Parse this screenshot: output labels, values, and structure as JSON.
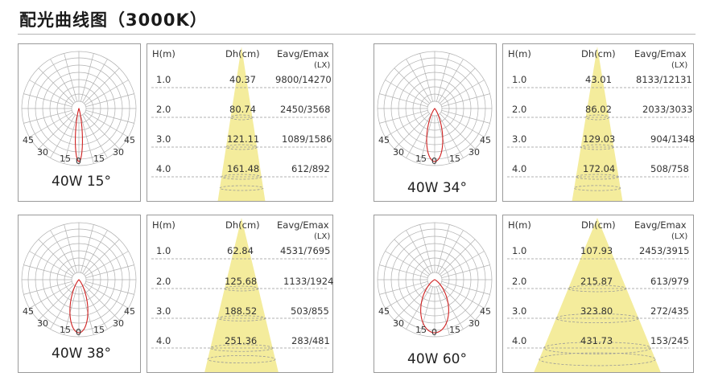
{
  "page": {
    "title": "配光曲线图（3000K）"
  },
  "colors": {
    "cone_fill": "#f4ec9c",
    "curve_stroke": "#d02020",
    "grid_stroke": "#b0b0b0",
    "panel_border": "#9a9a9a",
    "dash_stroke": "#999999"
  },
  "panels": [
    {
      "name": "40w-15",
      "label": "40W 15°",
      "beam_angle_deg": 15,
      "angle_labels": [
        "45",
        "30",
        "15",
        "0",
        "15",
        "30",
        "45"
      ],
      "table": {
        "col_h": "H(m)",
        "col_dh": "Dh(cm)",
        "col_eavg": "Eavg/Emax",
        "col_unit": "(LX)",
        "rows": [
          {
            "h": "1.0",
            "dh": "40.37",
            "e": "9800/14270"
          },
          {
            "h": "2.0",
            "dh": "80.74",
            "e": "2450/3568"
          },
          {
            "h": "3.0",
            "dh": "121.11",
            "e": "1089/1586"
          },
          {
            "h": "4.0",
            "dh": "161.48",
            "e": "612/892"
          }
        ]
      }
    },
    {
      "name": "40w-34",
      "label": "40W 34°",
      "beam_angle_deg": 34,
      "angle_labels": [
        "45",
        "30",
        "15",
        "0",
        "15",
        "30",
        "45"
      ],
      "table": {
        "col_h": "H(m)",
        "col_dh": "Dh(cm)",
        "col_eavg": "Eavg/Emax",
        "col_unit": "(LX)",
        "rows": [
          {
            "h": "1.0",
            "dh": "43.01",
            "e": "8133/12131"
          },
          {
            "h": "2.0",
            "dh": "86.02",
            "e": "2033/3033"
          },
          {
            "h": "3.0",
            "dh": "129.03",
            "e": "904/1348"
          },
          {
            "h": "4.0",
            "dh": "172.04",
            "e": "508/758"
          }
        ]
      }
    },
    {
      "name": "40w-38",
      "label": "40W 38°",
      "beam_angle_deg": 38,
      "angle_labels": [
        "45",
        "30",
        "15",
        "0",
        "15",
        "30",
        "45"
      ],
      "table": {
        "col_h": "H(m)",
        "col_dh": "Dh(cm)",
        "col_eavg": "Eavg/Emax",
        "col_unit": "(LX)",
        "rows": [
          {
            "h": "1.0",
            "dh": "62.84",
            "e": "4531/7695"
          },
          {
            "h": "2.0",
            "dh": "125.68",
            "e": "1133/1924"
          },
          {
            "h": "3.0",
            "dh": "188.52",
            "e": "503/855"
          },
          {
            "h": "4.0",
            "dh": "251.36",
            "e": "283/481"
          }
        ]
      }
    },
    {
      "name": "40w-60",
      "label": "40W 60°",
      "beam_angle_deg": 60,
      "angle_labels": [
        "45",
        "30",
        "15",
        "0",
        "15",
        "30",
        "45"
      ],
      "table": {
        "col_h": "H(m)",
        "col_dh": "Dh(cm)",
        "col_eavg": "Eavg/Emax",
        "col_unit": "(LX)",
        "rows": [
          {
            "h": "1.0",
            "dh": "107.93",
            "e": "2453/3915"
          },
          {
            "h": "2.0",
            "dh": "215.87",
            "e": "613/979"
          },
          {
            "h": "3.0",
            "dh": "323.80",
            "e": "272/435"
          },
          {
            "h": "4.0",
            "dh": "431.73",
            "e": "153/245"
          }
        ]
      }
    }
  ]
}
